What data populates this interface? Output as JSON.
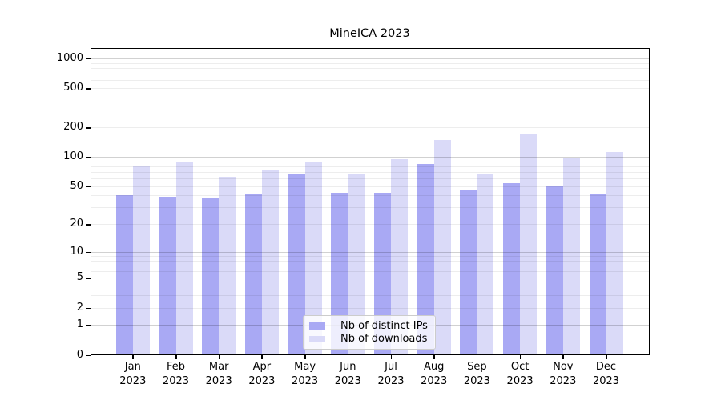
{
  "chart_data": {
    "type": "bar",
    "title": "MineICA 2023",
    "categories": [
      "Jan 2023",
      "Feb 2023",
      "Mar 2023",
      "Apr 2023",
      "May 2023",
      "Jun 2023",
      "Jul 2023",
      "Aug 2023",
      "Sep 2023",
      "Oct 2023",
      "Nov 2023",
      "Dec 2023"
    ],
    "months": [
      "Jan",
      "Feb",
      "Mar",
      "Apr",
      "May",
      "Jun",
      "Jul",
      "Aug",
      "Sep",
      "Oct",
      "Nov",
      "Dec"
    ],
    "year_label": "2023",
    "series": [
      {
        "name": "Nb of distinct IPs",
        "color": "#a9a9f4",
        "values": [
          40,
          39,
          37,
          42,
          67,
          43,
          43,
          84,
          45,
          54,
          50,
          42
        ]
      },
      {
        "name": "Nb of downloads",
        "color": "#dadaf8",
        "values": [
          81,
          88,
          62,
          74,
          90,
          67,
          94,
          149,
          66,
          171,
          99,
          112
        ]
      }
    ],
    "yscale": "log10(1+x)",
    "ylim": [
      0,
      1260
    ],
    "yticks": [
      1000,
      500,
      200,
      100,
      50,
      20,
      10,
      5,
      2,
      1,
      0
    ],
    "grid": "horizontal gridlines on, log minor gridlines, drawn above bars",
    "legend_position": "lower center inside plot"
  },
  "legend": {
    "items": [
      {
        "label": "Nb of distinct IPs"
      },
      {
        "label": "Nb of downloads"
      }
    ]
  }
}
